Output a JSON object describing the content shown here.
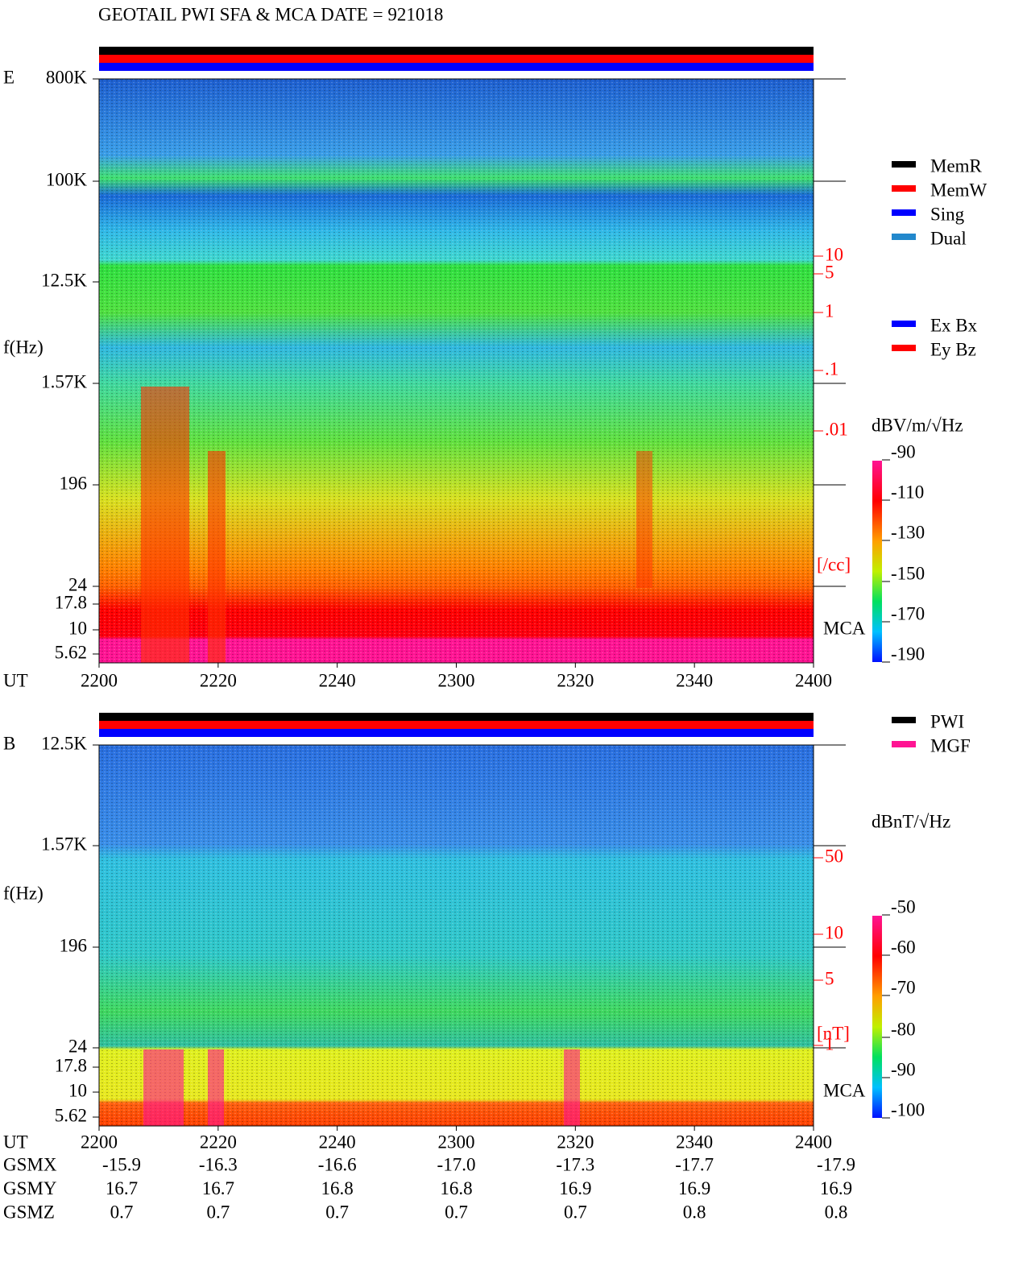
{
  "title": "GEOTAIL   PWI SFA & MCA   DATE = 921018",
  "legend_mode": [
    {
      "name": "MemR",
      "color": "#000000"
    },
    {
      "name": "MemW",
      "color": "#ff0000"
    },
    {
      "name": "Sing",
      "color": "#0000ff"
    },
    {
      "name": "Dual",
      "color": "#2288cc"
    }
  ],
  "legend_axis": [
    {
      "name": "Ex Bx",
      "color": "#0000ff"
    },
    {
      "name": "Ey Bz",
      "color": "#ff0000"
    }
  ],
  "legend_source": [
    {
      "name": "PWI",
      "color": "#000000"
    },
    {
      "name": "MGF",
      "color": "#ff1493"
    }
  ],
  "panels": [
    {
      "label": "E",
      "ylabel": "f(Hz)",
      "xlabel": "UT",
      "yticks": [
        "800K",
        "100K",
        "12.5K",
        "1.57K",
        "196",
        "24",
        "17.8",
        "10",
        "5.62"
      ],
      "xticks": [
        "2200",
        "2220",
        "2240",
        "2300",
        "2320",
        "2340",
        "2400"
      ],
      "right_ticks": [
        "10",
        "5",
        "1",
        ".1",
        ".01"
      ],
      "right_unit": "[/cc]",
      "mca": "MCA",
      "colorbar_unit": "dBV/m/√Hz",
      "colorbar_ticks": [
        "-90",
        "-110",
        "-130",
        "-150",
        "-170",
        "-190"
      ]
    },
    {
      "label": "B",
      "ylabel": "f(Hz)",
      "xlabel": "UT",
      "yticks": [
        "12.5K",
        "1.57K",
        "196",
        "24",
        "17.8",
        "10",
        "5.62"
      ],
      "xticks": [
        "2200",
        "2220",
        "2240",
        "2300",
        "2320",
        "2340",
        "2400"
      ],
      "right_ticks": [
        "50",
        "10",
        "5",
        "1"
      ],
      "right_unit": "[nT]",
      "mca": "MCA",
      "colorbar_unit": "dBnT/√Hz",
      "colorbar_ticks": [
        "-50",
        "-60",
        "-70",
        "-80",
        "-90",
        "-100"
      ]
    }
  ],
  "orbit": [
    {
      "name": "GSMX",
      "values": [
        "-15.9",
        "-16.3",
        "-16.6",
        "-17.0",
        "-17.3",
        "-17.7",
        "-17.9"
      ]
    },
    {
      "name": "GSMY",
      "values": [
        "16.7",
        "16.7",
        "16.8",
        "16.8",
        "16.9",
        "16.9",
        "16.9"
      ]
    },
    {
      "name": "GSMZ",
      "values": [
        "0.7",
        "0.7",
        "0.7",
        "0.7",
        "0.7",
        "0.8",
        "0.8"
      ]
    }
  ]
}
